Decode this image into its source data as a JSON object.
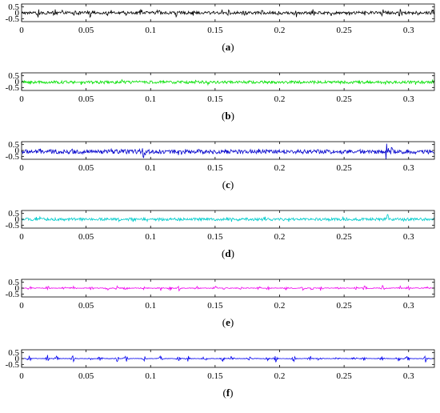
{
  "chart_data": [
    {
      "type": "line",
      "caption": "(a)",
      "caption_letter": "a",
      "color": "#000000",
      "xlim": [
        0,
        0.32
      ],
      "ylim": [
        -0.75,
        0.75
      ],
      "xticks": [
        0,
        0.05,
        0.1,
        0.15,
        0.2,
        0.25,
        0.3
      ],
      "xtick_labels": [
        "0",
        "0.05",
        "0.1",
        "0.15",
        "0.2",
        "0.25",
        "0.3"
      ],
      "yticks": [
        0.5,
        0,
        -0.5
      ],
      "ytick_labels": [
        "0.5",
        "0",
        "-0.5"
      ],
      "signal_description": "noisy signal with periodic impulses",
      "baseline": 0,
      "noise_amplitude": 0.12,
      "impulse_times": [
        0.013,
        0.026,
        0.04,
        0.053,
        0.066,
        0.08,
        0.093,
        0.106,
        0.12,
        0.133,
        0.146,
        0.16,
        0.173,
        0.186,
        0.2,
        0.213,
        0.226,
        0.24,
        0.253,
        0.266,
        0.28,
        0.293,
        0.306,
        0.319
      ],
      "impulse_amplitude": 0.35
    },
    {
      "type": "line",
      "caption": "(b)",
      "caption_letter": "b",
      "color": "#00e000",
      "xlim": [
        0,
        0.32
      ],
      "ylim": [
        -0.75,
        0.75
      ],
      "xticks": [
        0,
        0.05,
        0.1,
        0.15,
        0.2,
        0.25,
        0.3
      ],
      "xtick_labels": [
        "0",
        "0.05",
        "0.1",
        "0.15",
        "0.2",
        "0.25",
        "0.3"
      ],
      "yticks": [
        0.5,
        0,
        -0.5
      ],
      "ytick_labels": [
        "0.5",
        "0",
        "-0.5"
      ],
      "baseline": -0.05,
      "noise_amplitude": 0.12,
      "impulse_times": [],
      "impulse_amplitude": 0
    },
    {
      "type": "line",
      "caption": "(c)",
      "caption_letter": "c",
      "color": "#0000cc",
      "xlim": [
        0,
        0.32
      ],
      "ylim": [
        -0.75,
        0.75
      ],
      "xticks": [
        0,
        0.05,
        0.1,
        0.15,
        0.2,
        0.25,
        0.3
      ],
      "xtick_labels": [
        "0",
        "0.05",
        "0.1",
        "0.15",
        "0.2",
        "0.25",
        "0.3"
      ],
      "yticks": [
        0.5,
        0,
        -0.5
      ],
      "ytick_labels": [
        "0.5",
        "0",
        "-0.5"
      ],
      "baseline": -0.1,
      "noise_amplitude": 0.18,
      "impulse_times": [
        0.095,
        0.283,
        0.287
      ],
      "impulse_amplitude": 0.8
    },
    {
      "type": "line",
      "caption": "(d)",
      "caption_letter": "d",
      "color": "#00cccc",
      "xlim": [
        0,
        0.32
      ],
      "ylim": [
        -0.75,
        0.75
      ],
      "xticks": [
        0,
        0.05,
        0.1,
        0.15,
        0.2,
        0.25,
        0.3
      ],
      "xtick_labels": [
        "0",
        "0.05",
        "0.1",
        "0.15",
        "0.2",
        "0.25",
        "0.3"
      ],
      "yticks": [
        0.5,
        0,
        -0.5
      ],
      "ytick_labels": [
        "0.5",
        "0",
        "-0.5"
      ],
      "baseline": 0,
      "noise_amplitude": 0.12,
      "impulse_times": [
        0.284
      ],
      "impulse_amplitude": 0.5
    },
    {
      "type": "line",
      "caption": "(e)",
      "caption_letter": "e",
      "color": "#ee00ee",
      "xlim": [
        0,
        0.32
      ],
      "ylim": [
        -0.75,
        0.75
      ],
      "xticks": [
        0,
        0.05,
        0.1,
        0.15,
        0.2,
        0.25,
        0.3
      ],
      "xtick_labels": [
        "0",
        "0.05",
        "0.1",
        "0.15",
        "0.2",
        "0.25",
        "0.3"
      ],
      "yticks": [
        0.5,
        0,
        -0.5
      ],
      "ytick_labels": [
        "0.5",
        "0",
        "-0.5"
      ],
      "baseline": 0,
      "noise_amplitude": 0.03,
      "impulse_times": [
        0.006,
        0.02,
        0.033,
        0.04,
        0.054,
        0.067,
        0.074,
        0.081,
        0.095,
        0.108,
        0.115,
        0.122,
        0.136,
        0.15,
        0.157,
        0.17,
        0.184,
        0.191,
        0.205,
        0.218,
        0.225,
        0.232,
        0.246,
        0.259,
        0.266,
        0.28,
        0.293,
        0.3,
        0.314
      ],
      "impulse_amplitude": 0.25
    },
    {
      "type": "line",
      "caption": "(f)",
      "caption_letter": "f",
      "color": "#0000ee",
      "xlim": [
        0,
        0.32
      ],
      "ylim": [
        -0.75,
        0.75
      ],
      "xticks": [
        0,
        0.05,
        0.1,
        0.15,
        0.2,
        0.25,
        0.3
      ],
      "xtick_labels": [
        "0",
        "0.05",
        "0.1",
        "0.15",
        "0.2",
        "0.25",
        "0.3"
      ],
      "yticks": [
        0.5,
        0,
        -0.5
      ],
      "ytick_labels": [
        "0.5",
        "0",
        "-0.5"
      ],
      "baseline": 0,
      "noise_amplitude": 0.02,
      "impulse_times": [
        0.006,
        0.02,
        0.027,
        0.04,
        0.054,
        0.061,
        0.074,
        0.081,
        0.095,
        0.108,
        0.122,
        0.129,
        0.142,
        0.156,
        0.163,
        0.177,
        0.19,
        0.197,
        0.211,
        0.224,
        0.231,
        0.245,
        0.258,
        0.265,
        0.279,
        0.292,
        0.299,
        0.313
      ],
      "impulse_amplitude": 0.35
    }
  ]
}
